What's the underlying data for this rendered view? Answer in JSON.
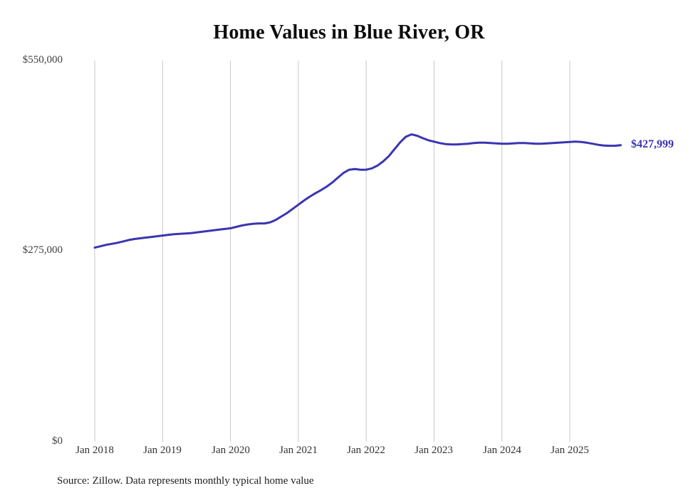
{
  "title": "Home Values in Blue River, OR",
  "source_note": "Source: Zillow. Data represents monthly typical home value",
  "end_label": "$427,999",
  "chart_data": {
    "type": "line",
    "title": "Home Values in Blue River, OR",
    "series_name": "Monthly typical home value",
    "x_start": "2018-01",
    "x_end": "2025-10",
    "x_tick_labels": [
      "Jan 2018",
      "Jan 2019",
      "Jan 2020",
      "Jan 2021",
      "Jan 2022",
      "Jan 2023",
      "Jan 2024",
      "Jan 2025"
    ],
    "y_tick_labels": [
      "$550,000",
      "$275,000",
      "$0"
    ],
    "ylim": [
      0,
      550000
    ],
    "grid": "vertical-only",
    "legend": "none",
    "line_color": "#3b35b1",
    "end_label": "$427,999",
    "last_value": 427999,
    "values": [
      280000,
      282000,
      284000,
      285500,
      287000,
      289000,
      291000,
      292500,
      293500,
      294500,
      295500,
      296500,
      297500,
      298500,
      299500,
      300000,
      300500,
      301000,
      302000,
      303000,
      304000,
      305000,
      306000,
      307000,
      308000,
      310000,
      312000,
      313500,
      314500,
      315000,
      315000,
      316500,
      320000,
      325000,
      330000,
      336000,
      342000,
      348000,
      353500,
      358500,
      363000,
      368000,
      374000,
      381000,
      388000,
      392500,
      393500,
      392500,
      392500,
      394500,
      398500,
      404500,
      412000,
      422000,
      432000,
      440000,
      443500,
      441500,
      438000,
      435000,
      433000,
      431000,
      429500,
      429000,
      429000,
      429500,
      430000,
      431000,
      431500,
      431500,
      431000,
      430500,
      430000,
      430000,
      430500,
      431000,
      431000,
      430500,
      430000,
      430000,
      430500,
      431000,
      431500,
      432000,
      432500,
      433000,
      432500,
      431500,
      430000,
      428500,
      427500,
      427000,
      427000,
      427999
    ]
  }
}
